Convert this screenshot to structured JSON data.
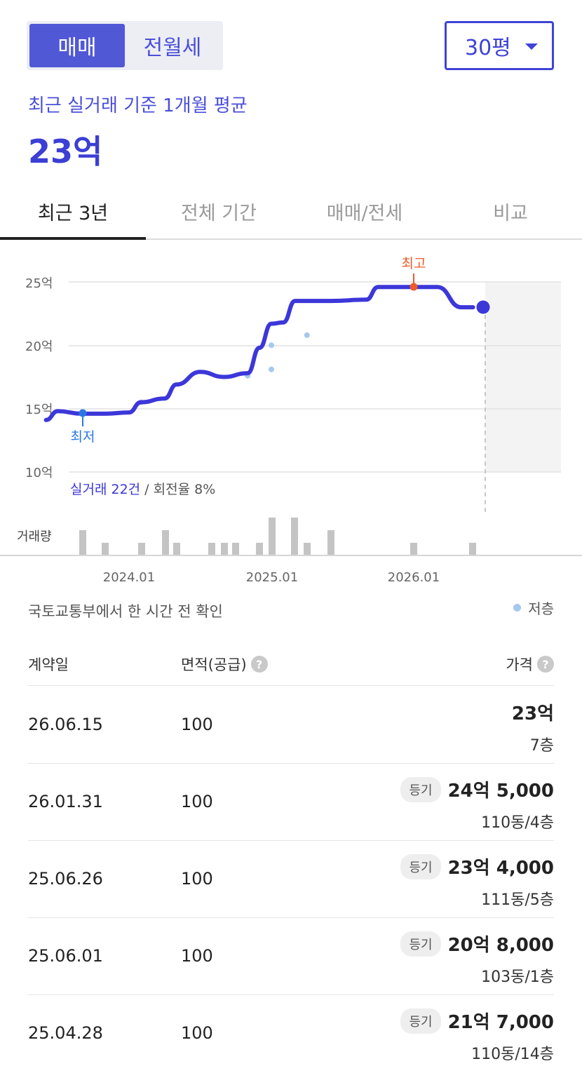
{
  "segment": {
    "active": "매매",
    "inactive": "전월세"
  },
  "area_select": {
    "value": "30평"
  },
  "summary": {
    "label": "최근 실거래 기준 1개월 평균",
    "value": "23억"
  },
  "tabs": [
    {
      "label": "최근 3년",
      "active": true
    },
    {
      "label": "전체 기간",
      "active": false
    },
    {
      "label": "매매/전세",
      "active": false
    },
    {
      "label": "비교",
      "active": false
    }
  ],
  "chart": {
    "y_ticks": [
      "25억",
      "20억",
      "15억",
      "10억"
    ],
    "max_label": "최고",
    "min_label": "최저",
    "stats_highlight": "실거래 22건",
    "stats_rest": " / 회전율 8%",
    "volume_label": "거래량",
    "x_ticks": [
      "2024.01",
      "2025.01",
      "2026.01"
    ],
    "colors": {
      "line": "#3c37d9",
      "max": "#ef5a2b",
      "min": "#2a77e4",
      "low_floor": "#a7c8ee",
      "volume": "#c4c4c4"
    }
  },
  "chart_data": {
    "type": "line",
    "ylim": [
      10,
      25
    ],
    "y_unit": "억",
    "series": [
      {
        "values_note": "",
        "points": [
          [
            "2023-06",
            14.1
          ],
          [
            "2023-07",
            14.8
          ],
          [
            "2023-09",
            14.6
          ],
          [
            "2023-11",
            14.6
          ],
          [
            "2024-01",
            14.7
          ],
          [
            "2024-02",
            15.5
          ],
          [
            "2024-04",
            15.8
          ],
          [
            "2024-05",
            16.9
          ],
          [
            "2024-07",
            17.9
          ],
          [
            "2024-09",
            17.5
          ],
          [
            "2024-11",
            17.8
          ],
          [
            "2024-12",
            19.8
          ],
          [
            "2025-01",
            21.7
          ],
          [
            "2025-02",
            21.8
          ],
          [
            "2025-03",
            23.5
          ],
          [
            "2025-06",
            23.5
          ],
          [
            "2025-09",
            23.6
          ],
          [
            "2025-10",
            24.6
          ],
          [
            "2026-01",
            24.6
          ],
          [
            "2026-03",
            24.6
          ],
          [
            "2026-05",
            23.0
          ],
          [
            "2026-06",
            23.0
          ]
        ]
      }
    ],
    "low_floor_points": [
      [
        "2024-02",
        15.5
      ],
      [
        "2024-11",
        17.6
      ],
      [
        "2025-01",
        18.1
      ],
      [
        "2025-01",
        20.0
      ],
      [
        "2025-04",
        20.8
      ]
    ],
    "volume": [
      {
        "date": "2023-07",
        "count": 2
      },
      {
        "date": "2023-09",
        "count": 1
      },
      {
        "date": "2023-12",
        "count": 1
      },
      {
        "date": "2024-02",
        "count": 2
      },
      {
        "date": "2024-03",
        "count": 1
      },
      {
        "date": "2024-07",
        "count": 1
      },
      {
        "date": "2024-08",
        "count": 1
      },
      {
        "date": "2024-09",
        "count": 1
      },
      {
        "date": "2024-11",
        "count": 1
      },
      {
        "date": "2024-12",
        "count": 3
      },
      {
        "date": "2025-02",
        "count": 3
      },
      {
        "date": "2025-03",
        "count": 1
      },
      {
        "date": "2025-04",
        "count": 2
      },
      {
        "date": "2026-01",
        "count": 1
      },
      {
        "date": "2026-04",
        "count": 1
      }
    ],
    "max_point": [
      "2025-11",
      24.5
    ],
    "min_point": [
      "2023-07",
      14.7
    ]
  },
  "source_note": "국토교통부에서 한 시간 전 확인",
  "legend": {
    "low_floor": "저층"
  },
  "table": {
    "headers": {
      "date": "계약일",
      "area": "면적(공급)",
      "price": "가격"
    },
    "rows": [
      {
        "date": "26.06.15",
        "area": "100",
        "badge": "",
        "price": "23억",
        "floor": "7층"
      },
      {
        "date": "26.01.31",
        "area": "100",
        "badge": "등기",
        "price": "24억 5,000",
        "floor": "110동/4층"
      },
      {
        "date": "25.06.26",
        "area": "100",
        "badge": "등기",
        "price": "23억 4,000",
        "floor": "111동/5층"
      },
      {
        "date": "25.06.01",
        "area": "100",
        "badge": "등기",
        "price": "20억 8,000",
        "floor": "103동/1층"
      },
      {
        "date": "25.04.28",
        "area": "100",
        "badge": "등기",
        "price": "21억 7,000",
        "floor": "110동/14층"
      }
    ]
  }
}
